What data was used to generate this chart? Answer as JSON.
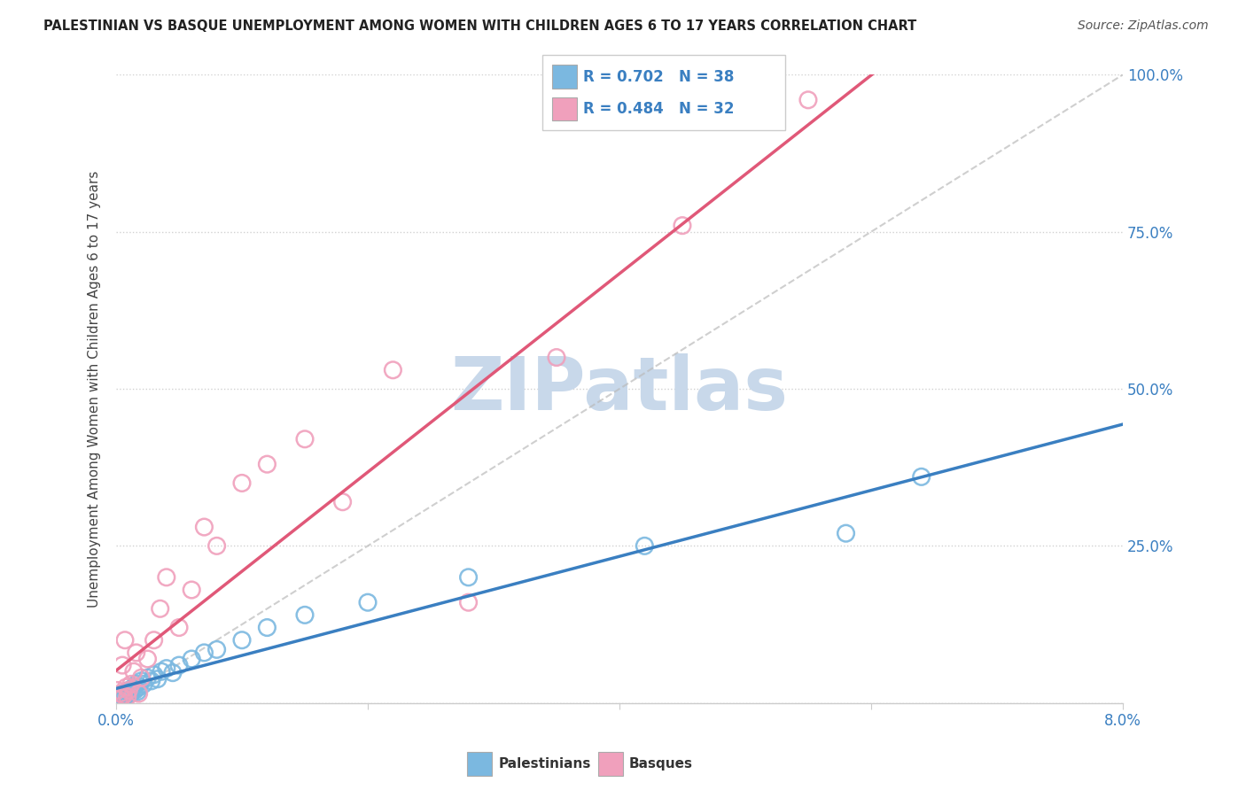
{
  "title": "PALESTINIAN VS BASQUE UNEMPLOYMENT AMONG WOMEN WITH CHILDREN AGES 6 TO 17 YEARS CORRELATION CHART",
  "source": "Source: ZipAtlas.com",
  "ylabel": "Unemployment Among Women with Children Ages 6 to 17 years",
  "xlim": [
    0.0,
    0.08
  ],
  "ylim": [
    0.0,
    1.0
  ],
  "xticks": [
    0.0,
    0.02,
    0.04,
    0.06,
    0.08
  ],
  "xtick_labels": [
    "0.0%",
    "",
    "",
    "",
    "8.0%"
  ],
  "yticks": [
    0.0,
    0.25,
    0.5,
    0.75,
    1.0
  ],
  "ytick_labels": [
    "",
    "25.0%",
    "50.0%",
    "75.0%",
    "100.0%"
  ],
  "r_palestinian": 0.702,
  "n_palestinian": 38,
  "r_basque": 0.484,
  "n_basque": 32,
  "blue_color": "#7bb8e0",
  "pink_color": "#f0a0bc",
  "blue_line_color": "#3a7fc1",
  "pink_line_color": "#e05878",
  "legend_r_color": "#3a7fc1",
  "watermark": "ZIPatlas",
  "watermark_color": "#c8d8ea",
  "ref_line_color": "#bbbbbb",
  "palestinian_x": [
    0.0002,
    0.0003,
    0.0004,
    0.0005,
    0.0006,
    0.0007,
    0.0008,
    0.0009,
    0.001,
    0.0011,
    0.0012,
    0.0013,
    0.0014,
    0.0015,
    0.0016,
    0.0017,
    0.0018,
    0.002,
    0.0022,
    0.0025,
    0.0028,
    0.003,
    0.0033,
    0.0036,
    0.004,
    0.0045,
    0.005,
    0.006,
    0.007,
    0.008,
    0.01,
    0.012,
    0.015,
    0.02,
    0.028,
    0.042,
    0.058,
    0.064
  ],
  "palestinian_y": [
    0.005,
    0.01,
    0.008,
    0.012,
    0.015,
    0.01,
    0.018,
    0.012,
    0.02,
    0.015,
    0.022,
    0.018,
    0.025,
    0.02,
    0.03,
    0.018,
    0.025,
    0.035,
    0.03,
    0.04,
    0.035,
    0.045,
    0.038,
    0.05,
    0.055,
    0.048,
    0.06,
    0.07,
    0.08,
    0.085,
    0.1,
    0.12,
    0.14,
    0.16,
    0.2,
    0.25,
    0.27,
    0.36
  ],
  "basque_x": [
    0.0001,
    0.0002,
    0.0003,
    0.0004,
    0.0005,
    0.0006,
    0.0007,
    0.0008,
    0.0009,
    0.001,
    0.0012,
    0.0014,
    0.0016,
    0.0018,
    0.002,
    0.0025,
    0.003,
    0.0035,
    0.004,
    0.005,
    0.006,
    0.007,
    0.008,
    0.01,
    0.012,
    0.015,
    0.018,
    0.022,
    0.028,
    0.035,
    0.045,
    0.055
  ],
  "basque_y": [
    0.02,
    0.005,
    0.015,
    0.008,
    0.06,
    0.012,
    0.1,
    0.025,
    0.01,
    0.02,
    0.03,
    0.05,
    0.08,
    0.015,
    0.04,
    0.07,
    0.1,
    0.15,
    0.2,
    0.12,
    0.18,
    0.28,
    0.25,
    0.35,
    0.38,
    0.42,
    0.32,
    0.53,
    0.16,
    0.55,
    0.76,
    0.96
  ]
}
